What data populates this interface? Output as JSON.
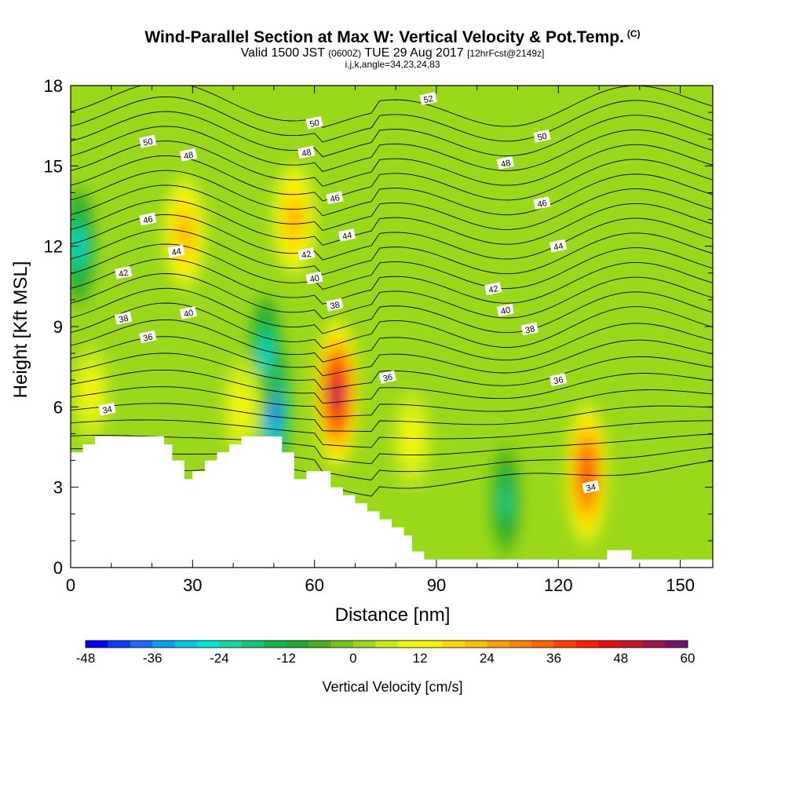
{
  "title": "Wind-Parallel Section at Max W: Vertical Velocity & Pot.Temp.",
  "title_mark": "(C)",
  "subtitle_main": "Valid 1500 JST",
  "subtitle_z": "(0600Z)",
  "subtitle_date": "TUE 29 Aug 2017",
  "subtitle_fcst": "[12hrFcst@2149z]",
  "subtitle2": "i,j,k,angle=34,23,24,83",
  "colors": {
    "terrain": "#ffffff",
    "contour": "#000000",
    "background": "#9ad81a"
  },
  "chart_data": {
    "type": "heatmap",
    "xlabel": "Distance [nm]",
    "ylabel": "Height [Kft MSL]",
    "xlim": [
      0,
      158
    ],
    "ylim": [
      0,
      18
    ],
    "xticks": [
      0,
      30,
      60,
      90,
      120,
      150
    ],
    "yticks": [
      0,
      3,
      6,
      9,
      12,
      15,
      18
    ],
    "colorbar": {
      "label": "Vertical Velocity [cm/s]",
      "min": -48,
      "max": 60,
      "step": 4,
      "ticks": [
        -48,
        -36,
        -24,
        -12,
        0,
        12,
        24,
        36,
        48,
        60
      ],
      "colors": [
        "#0000ff",
        "#0a3cff",
        "#1a6cff",
        "#0aa0f0",
        "#00c8e6",
        "#00e6d2",
        "#14d7a0",
        "#10c878",
        "#10b84a",
        "#1eaa2a",
        "#46b21e",
        "#70c614",
        "#9ad81a",
        "#c8ea14",
        "#f0f50a",
        "#fff000",
        "#ffd700",
        "#ffbe00",
        "#ffa000",
        "#ff8200",
        "#ff6400",
        "#ff4100",
        "#ff1e00",
        "#e60f0f",
        "#c8142d",
        "#a01450",
        "#78106e"
      ]
    },
    "w_features": [
      {
        "x": 65.5,
        "z": 6.5,
        "w": 56
      },
      {
        "x": 127,
        "z": 3.5,
        "w": 42
      },
      {
        "x": 50,
        "z": 6.0,
        "w": -46
      },
      {
        "x": 48,
        "z": 8.0,
        "w": -30
      },
      {
        "x": 28,
        "z": 12.5,
        "w": 24
      },
      {
        "x": 55,
        "z": 13.0,
        "w": 26
      },
      {
        "x": 107,
        "z": 2.5,
        "w": -24
      },
      {
        "x": 2,
        "z": 12.0,
        "w": -30
      },
      {
        "x": 5,
        "z": 6.5,
        "w": 12
      },
      {
        "x": 84,
        "z": 4.8,
        "w": 14
      },
      {
        "x": 42,
        "z": 6.0,
        "w": 14
      }
    ],
    "theta_contour_labels": [
      {
        "value": "34",
        "x": 9,
        "z": 5.9
      },
      {
        "value": "34",
        "x": 128,
        "z": 3.0
      },
      {
        "value": "36",
        "x": 19,
        "z": 8.6
      },
      {
        "value": "36",
        "x": 78,
        "z": 7.1
      },
      {
        "value": "36",
        "x": 120,
        "z": 7.0
      },
      {
        "value": "38",
        "x": 13,
        "z": 9.3
      },
      {
        "value": "38",
        "x": 65,
        "z": 9.8
      },
      {
        "value": "38",
        "x": 113,
        "z": 8.9
      },
      {
        "value": "40",
        "x": 29,
        "z": 9.5
      },
      {
        "value": "40",
        "x": 60,
        "z": 10.8
      },
      {
        "value": "40",
        "x": 107,
        "z": 9.6
      },
      {
        "value": "42",
        "x": 13,
        "z": 11.0
      },
      {
        "value": "42",
        "x": 58,
        "z": 11.7
      },
      {
        "value": "42",
        "x": 104,
        "z": 10.4
      },
      {
        "value": "44",
        "x": 26,
        "z": 11.8
      },
      {
        "value": "44",
        "x": 68,
        "z": 12.4
      },
      {
        "value": "44",
        "x": 120,
        "z": 12.0
      },
      {
        "value": "46",
        "x": 19,
        "z": 13.0
      },
      {
        "value": "46",
        "x": 65,
        "z": 13.8
      },
      {
        "value": "46",
        "x": 116,
        "z": 13.6
      },
      {
        "value": "48",
        "x": 29,
        "z": 15.4
      },
      {
        "value": "48",
        "x": 58,
        "z": 15.5
      },
      {
        "value": "48",
        "x": 107,
        "z": 15.1
      },
      {
        "value": "50",
        "x": 19,
        "z": 15.9
      },
      {
        "value": "50",
        "x": 60,
        "z": 16.6
      },
      {
        "value": "50",
        "x": 116,
        "z": 16.1
      },
      {
        "value": "52",
        "x": 88,
        "z": 17.5
      }
    ],
    "terrain_profile": [
      [
        0,
        4.3
      ],
      [
        3,
        4.3
      ],
      [
        3,
        4.6
      ],
      [
        6,
        4.6
      ],
      [
        6,
        4.9
      ],
      [
        23,
        4.9
      ],
      [
        23,
        4.6
      ],
      [
        25,
        4.6
      ],
      [
        25,
        4.0
      ],
      [
        28,
        4.0
      ],
      [
        28,
        3.3
      ],
      [
        30,
        3.3
      ],
      [
        30,
        3.6
      ],
      [
        33,
        3.6
      ],
      [
        33,
        4.0
      ],
      [
        36,
        4.0
      ],
      [
        36,
        4.3
      ],
      [
        39,
        4.3
      ],
      [
        39,
        4.6
      ],
      [
        42,
        4.6
      ],
      [
        42,
        4.9
      ],
      [
        52,
        4.9
      ],
      [
        52,
        4.3
      ],
      [
        55,
        4.3
      ],
      [
        55,
        3.3
      ],
      [
        58,
        3.3
      ],
      [
        58,
        3.6
      ],
      [
        64,
        3.6
      ],
      [
        64,
        3.0
      ],
      [
        67,
        3.0
      ],
      [
        67,
        2.7
      ],
      [
        70,
        2.7
      ],
      [
        70,
        2.4
      ],
      [
        73,
        2.4
      ],
      [
        73,
        2.1
      ],
      [
        76,
        2.1
      ],
      [
        76,
        1.8
      ],
      [
        79,
        1.8
      ],
      [
        79,
        1.5
      ],
      [
        82,
        1.5
      ],
      [
        82,
        1.2
      ],
      [
        84,
        1.2
      ],
      [
        84,
        0.6
      ],
      [
        87,
        0.6
      ],
      [
        87,
        0.3
      ],
      [
        132,
        0.3
      ],
      [
        132,
        0.65
      ],
      [
        138,
        0.65
      ],
      [
        138,
        0.3
      ],
      [
        158,
        0.3
      ]
    ]
  }
}
